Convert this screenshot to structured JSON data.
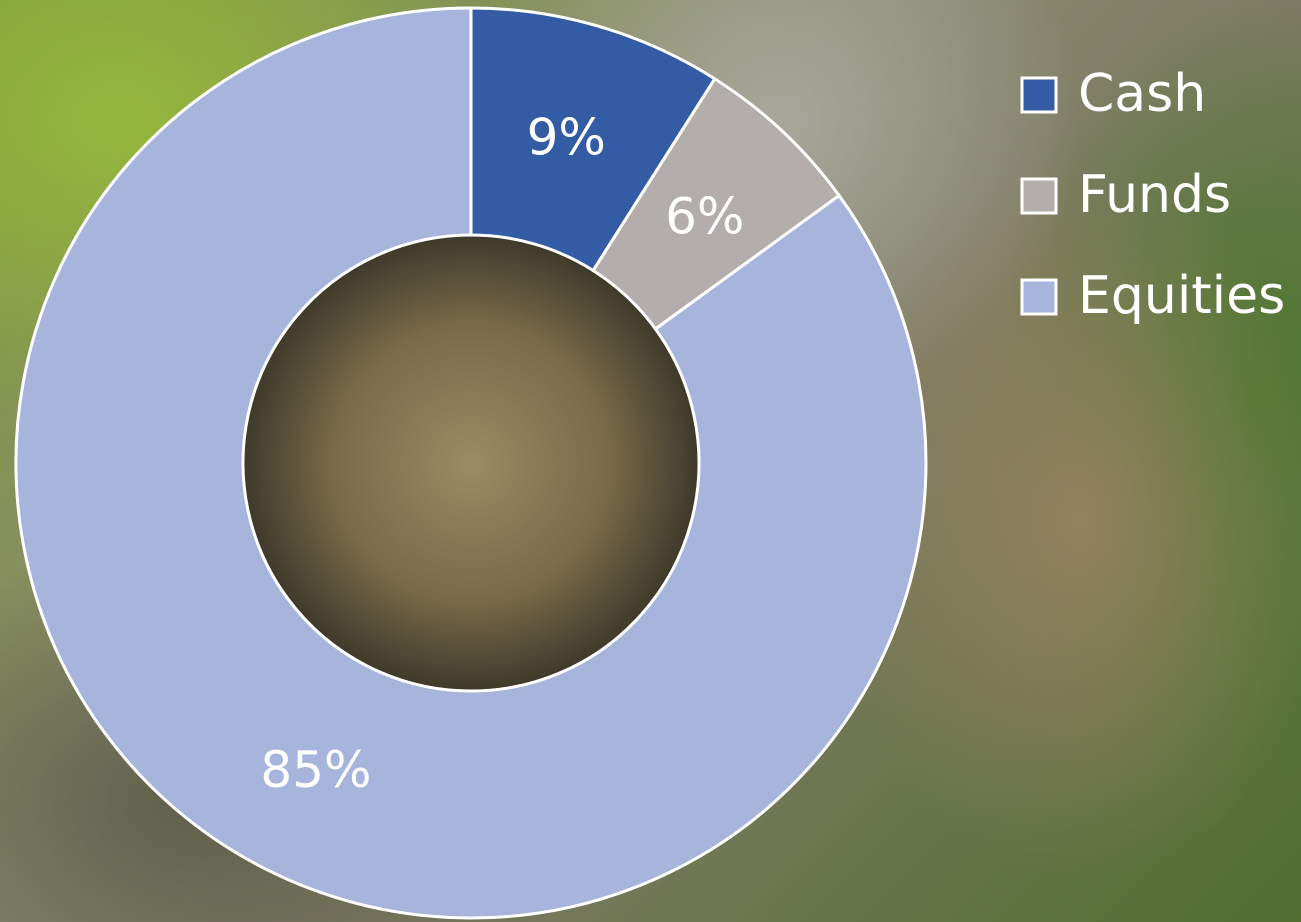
{
  "chart_data": {
    "type": "donut",
    "categories": [
      "Cash",
      "Funds",
      "Equities"
    ],
    "values": [
      9,
      6,
      85
    ],
    "value_labels": [
      "9%",
      "6%",
      "85%"
    ],
    "colors": [
      "#345ca5",
      "#b3aeac",
      "#a7b4dc"
    ]
  }
}
